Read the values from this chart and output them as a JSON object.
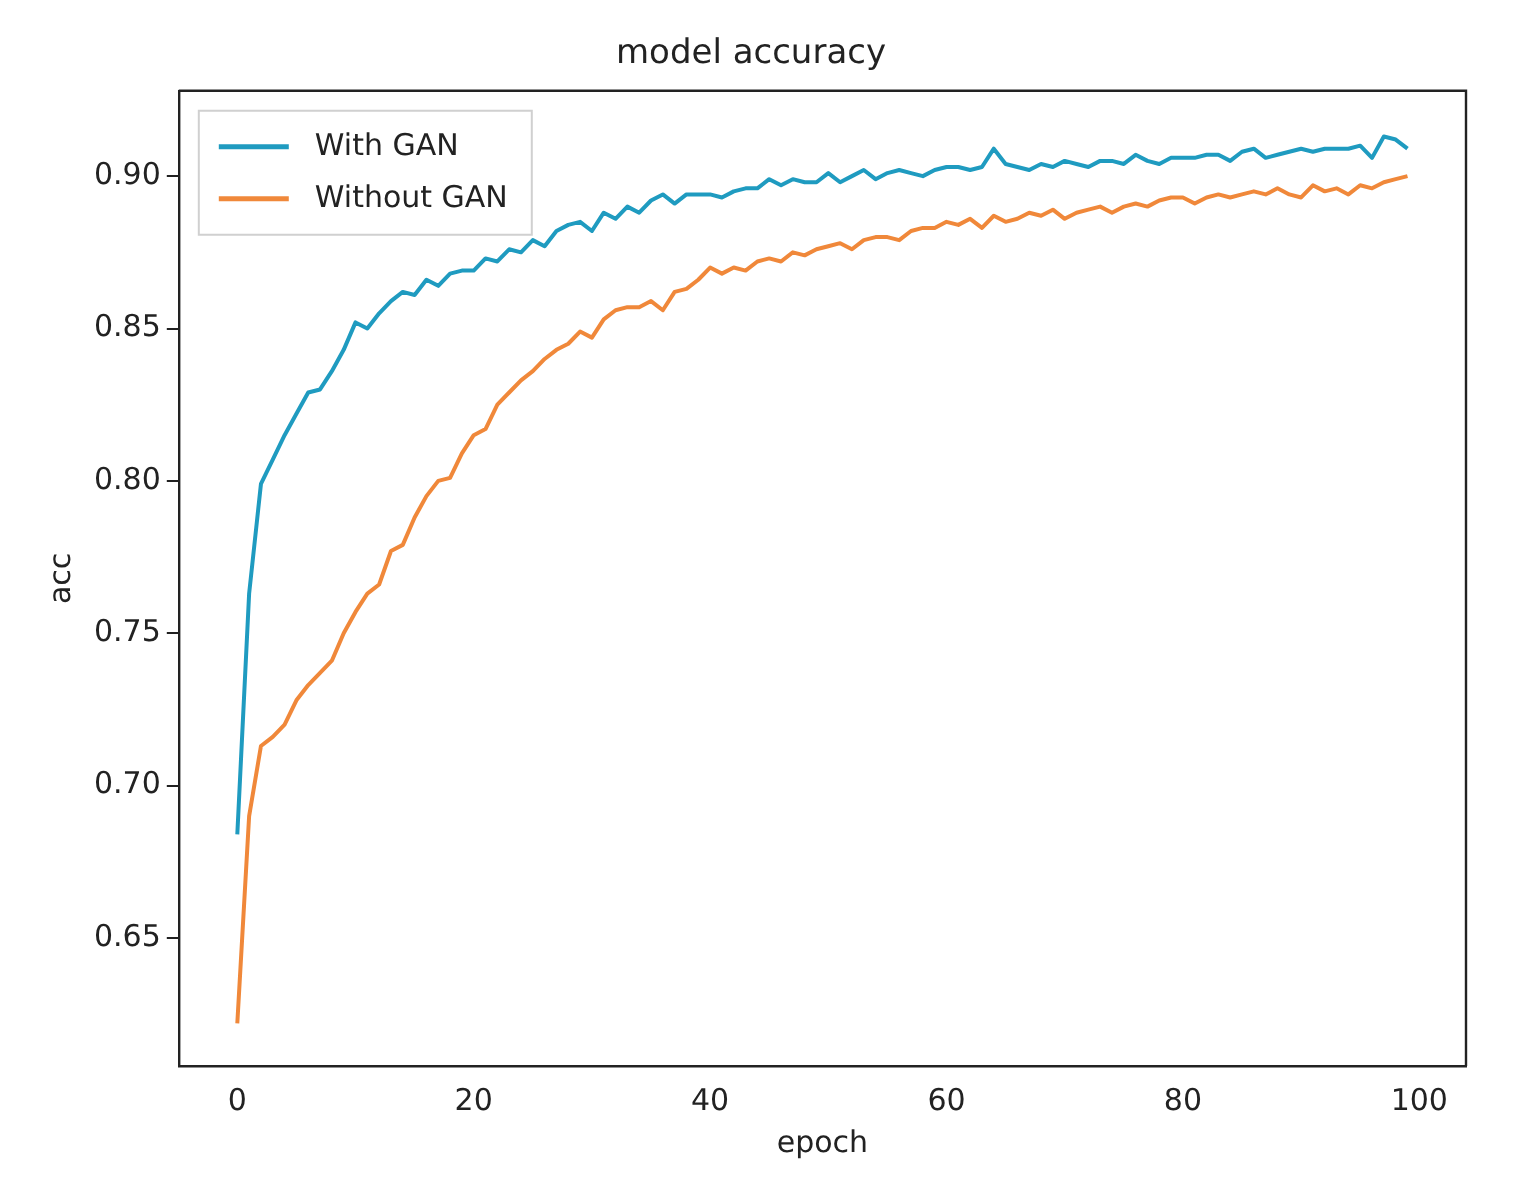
{
  "chart_data": {
    "type": "line",
    "title": "model accuracy",
    "xlabel": "epoch",
    "ylabel": "acc",
    "x": [
      0,
      1,
      2,
      3,
      4,
      5,
      6,
      7,
      8,
      9,
      10,
      11,
      12,
      13,
      14,
      15,
      16,
      17,
      18,
      19,
      20,
      21,
      22,
      23,
      24,
      25,
      26,
      27,
      28,
      29,
      30,
      31,
      32,
      33,
      34,
      35,
      36,
      37,
      38,
      39,
      40,
      41,
      42,
      43,
      44,
      45,
      46,
      47,
      48,
      49,
      50,
      51,
      52,
      53,
      54,
      55,
      56,
      57,
      58,
      59,
      60,
      61,
      62,
      63,
      64,
      65,
      66,
      67,
      68,
      69,
      70,
      71,
      72,
      73,
      74,
      75,
      76,
      77,
      78,
      79,
      80,
      81,
      82,
      83,
      84,
      85,
      86,
      87,
      88,
      89,
      90,
      91,
      92,
      93,
      94,
      95,
      96,
      97,
      98,
      99
    ],
    "series": [
      {
        "name": "With GAN",
        "color": "#1f9bc0",
        "values": [
          0.684,
          0.763,
          0.799,
          0.807,
          0.815,
          0.822,
          0.829,
          0.83,
          0.836,
          0.843,
          0.852,
          0.85,
          0.855,
          0.859,
          0.862,
          0.861,
          0.866,
          0.864,
          0.868,
          0.869,
          0.869,
          0.873,
          0.872,
          0.876,
          0.875,
          0.879,
          0.877,
          0.882,
          0.884,
          0.885,
          0.882,
          0.888,
          0.886,
          0.89,
          0.888,
          0.892,
          0.894,
          0.891,
          0.894,
          0.894,
          0.894,
          0.893,
          0.895,
          0.896,
          0.896,
          0.899,
          0.897,
          0.899,
          0.898,
          0.898,
          0.901,
          0.898,
          0.9,
          0.902,
          0.899,
          0.901,
          0.902,
          0.901,
          0.9,
          0.902,
          0.903,
          0.903,
          0.902,
          0.903,
          0.909,
          0.904,
          0.903,
          0.902,
          0.904,
          0.903,
          0.905,
          0.904,
          0.903,
          0.905,
          0.905,
          0.904,
          0.907,
          0.905,
          0.904,
          0.906,
          0.906,
          0.906,
          0.907,
          0.907,
          0.905,
          0.908,
          0.909,
          0.906,
          0.907,
          0.908,
          0.909,
          0.908,
          0.909,
          0.909,
          0.909,
          0.91,
          0.906,
          0.913,
          0.912,
          0.909
        ]
      },
      {
        "name": "Without GAN",
        "color": "#f0883a",
        "values": [
          0.622,
          0.69,
          0.713,
          0.716,
          0.72,
          0.728,
          0.733,
          0.737,
          0.741,
          0.75,
          0.757,
          0.763,
          0.766,
          0.777,
          0.779,
          0.788,
          0.795,
          0.8,
          0.801,
          0.809,
          0.815,
          0.817,
          0.825,
          0.829,
          0.833,
          0.836,
          0.84,
          0.843,
          0.845,
          0.849,
          0.847,
          0.853,
          0.856,
          0.857,
          0.857,
          0.859,
          0.856,
          0.862,
          0.863,
          0.866,
          0.87,
          0.868,
          0.87,
          0.869,
          0.872,
          0.873,
          0.872,
          0.875,
          0.874,
          0.876,
          0.877,
          0.878,
          0.876,
          0.879,
          0.88,
          0.88,
          0.879,
          0.882,
          0.883,
          0.883,
          0.885,
          0.884,
          0.886,
          0.883,
          0.887,
          0.885,
          0.886,
          0.888,
          0.887,
          0.889,
          0.886,
          0.888,
          0.889,
          0.89,
          0.888,
          0.89,
          0.891,
          0.89,
          0.892,
          0.893,
          0.893,
          0.891,
          0.893,
          0.894,
          0.893,
          0.894,
          0.895,
          0.894,
          0.896,
          0.894,
          0.893,
          0.897,
          0.895,
          0.896,
          0.894,
          0.897,
          0.896,
          0.898,
          0.899,
          0.9
        ]
      }
    ],
    "xlim": [
      -4.95,
      103.95
    ],
    "xticks": [
      0,
      20,
      40,
      60,
      80,
      100
    ],
    "ylim": [
      0.608,
      0.928
    ],
    "yticks": [
      0.65,
      {
        "value": 0.7,
        "label": "0.70"
      },
      0.75,
      {
        "value": 0.8,
        "label": "0.80"
      },
      0.85,
      {
        "value": 0.9,
        "label": "0.90"
      }
    ],
    "legend": "top left",
    "grid": false
  }
}
